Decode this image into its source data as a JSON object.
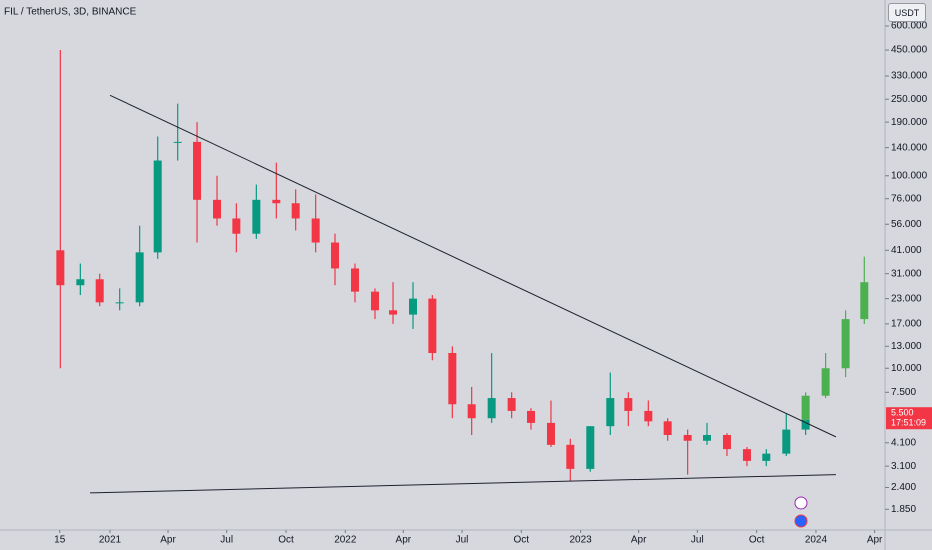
{
  "chart_data": {
    "type": "candlestick",
    "title": "FIL / TetherUS, 3D, BINANCE",
    "currency_button": "USDT",
    "log_scale": true,
    "ylim": [
      1.444,
      819
    ],
    "yticks": [
      {
        "value": 600,
        "label": "600.000"
      },
      {
        "value": 450,
        "label": "450.000"
      },
      {
        "value": 330,
        "label": "330.000"
      },
      {
        "value": 250,
        "label": "250.000"
      },
      {
        "value": 190,
        "label": "190.000"
      },
      {
        "value": 140,
        "label": "140.000"
      },
      {
        "value": 100,
        "label": "100.000"
      },
      {
        "value": 76,
        "label": "76.000"
      },
      {
        "value": 56,
        "label": "56.000"
      },
      {
        "value": 41,
        "label": "41.000"
      },
      {
        "value": 31,
        "label": "31.000"
      },
      {
        "value": 23,
        "label": "23.000"
      },
      {
        "value": 17,
        "label": "17.000"
      },
      {
        "value": 13,
        "label": "13.000"
      },
      {
        "value": 10,
        "label": "10.000"
      },
      {
        "value": 7.5,
        "label": "7.500"
      },
      {
        "value": 4.1,
        "label": "4.100"
      },
      {
        "value": 3.1,
        "label": "3.100"
      },
      {
        "value": 2.4,
        "label": "2.400"
      },
      {
        "value": 1.85,
        "label": "1.850"
      }
    ],
    "xticks": [
      {
        "value": "2020-10-15",
        "label": "15"
      },
      {
        "value": "2021-01",
        "label": "2021"
      },
      {
        "value": "2021-04",
        "label": "Apr"
      },
      {
        "value": "2021-07",
        "label": "Jul"
      },
      {
        "value": "2021-10",
        "label": "Oct"
      },
      {
        "value": "2022-01",
        "label": "2022"
      },
      {
        "value": "2022-04",
        "label": "Apr"
      },
      {
        "value": "2022-07",
        "label": "Jul"
      },
      {
        "value": "2022-10",
        "label": "Oct"
      },
      {
        "value": "2023-01",
        "label": "2023"
      },
      {
        "value": "2023-04",
        "label": "Apr"
      },
      {
        "value": "2023-07",
        "label": "Jul"
      },
      {
        "value": "2023-10",
        "label": "Oct"
      },
      {
        "value": "2024-01",
        "label": "2024"
      },
      {
        "value": "2024-04",
        "label": "Apr"
      }
    ],
    "series": [
      {
        "color_up": "#089981",
        "color_down": "#f23645",
        "x": [
          "2020-10",
          "2020-11",
          "2020-12",
          "2021-01",
          "2021-02",
          "2021-03",
          "2021-04",
          "2021-05",
          "2021-06",
          "2021-07",
          "2021-08",
          "2021-09",
          "2021-10",
          "2021-11",
          "2021-12",
          "2022-01",
          "2022-02",
          "2022-03",
          "2022-04",
          "2022-05",
          "2022-06",
          "2022-07",
          "2022-08",
          "2022-09",
          "2022-10",
          "2022-11",
          "2022-12",
          "2023-01",
          "2023-02",
          "2023-03",
          "2023-04",
          "2023-05",
          "2023-06",
          "2023-07",
          "2023-08",
          "2023-09",
          "2023-10",
          "2023-11",
          "2023-12"
        ],
        "open": [
          41,
          27,
          29,
          22,
          22,
          40,
          150,
          150,
          75,
          60,
          50,
          75,
          72,
          60,
          45,
          33,
          25,
          20,
          19,
          23,
          12,
          6.5,
          5.5,
          7,
          6,
          5.2,
          4,
          3,
          5,
          7,
          6,
          5.3,
          4.5,
          4.2,
          4.5,
          3.8,
          3.3,
          3.6,
          4.8
        ],
        "high": [
          450,
          35,
          31,
          26,
          55,
          160,
          237,
          190,
          100,
          72,
          90,
          117,
          85,
          80,
          50,
          35,
          26,
          28,
          28,
          24,
          13,
          8,
          12,
          7.5,
          6.2,
          6.8,
          4.3,
          5,
          9.5,
          7.5,
          6.8,
          5.5,
          4.8,
          5.2,
          4.6,
          3.9,
          3.8,
          5.8,
          5.7
        ],
        "low": [
          10,
          24,
          21,
          20,
          21,
          37,
          120,
          45,
          55,
          40,
          47,
          60,
          52,
          40,
          27,
          22,
          18,
          17,
          16,
          11,
          5.5,
          4.5,
          5.2,
          5.5,
          4.8,
          3.9,
          2.6,
          2.9,
          4.5,
          5,
          5,
          4.2,
          2.8,
          4,
          3.5,
          3.1,
          3.1,
          3.5,
          4.5
        ],
        "close": [
          27,
          29,
          22,
          22,
          40,
          120,
          150,
          75,
          60,
          50,
          75,
          72,
          60,
          45,
          33,
          25,
          20,
          19,
          23,
          12,
          6.5,
          5.5,
          7,
          6,
          5.2,
          4,
          3,
          5,
          7,
          6,
          5.3,
          4.5,
          4.2,
          4.5,
          3.8,
          3.3,
          3.6,
          4.8,
          5.4
        ]
      },
      {
        "color_up": "#4caf50",
        "color_down": "#4caf50",
        "x": [
          "2023-12",
          "2024-01",
          "2024-02",
          "2024-03"
        ],
        "open": [
          5.4,
          7.2,
          10,
          18
        ],
        "high": [
          7.5,
          12,
          20,
          38
        ],
        "low": [
          5.3,
          7,
          9,
          17
        ],
        "close": [
          7.2,
          10,
          18,
          28
        ]
      }
    ],
    "trendlines": [
      {
        "color": "#1e222d",
        "x": [
          "2021-01",
          "2024-02"
        ],
        "values": [
          262,
          4.4
        ]
      },
      {
        "color": "#1e222d",
        "x": [
          "2020-12",
          "2024-02"
        ],
        "values": [
          2.25,
          2.8
        ]
      }
    ],
    "price_label": {
      "value": 5.5,
      "label": "5.500",
      "countdown": "17:51:09",
      "color": "#f23645"
    }
  }
}
